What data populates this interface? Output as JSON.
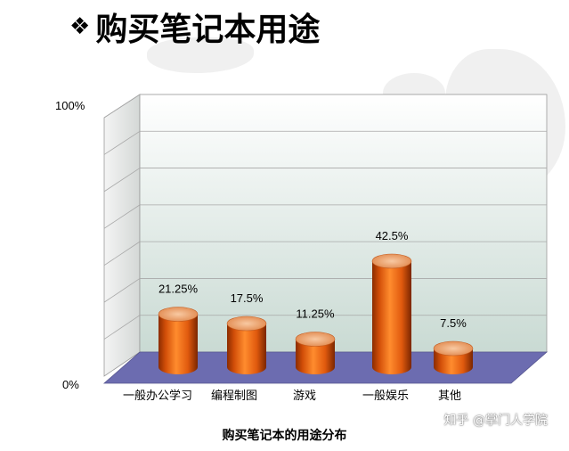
{
  "title": {
    "bullet": "❖",
    "text": "购买笔记本用途"
  },
  "chart_data": {
    "type": "bar",
    "categories": [
      "一般办公学习",
      "编程制图",
      "游戏",
      "一般娱乐",
      "其他"
    ],
    "values": [
      21.25,
      17.5,
      11.25,
      42.5,
      7.5
    ],
    "value_labels": [
      "21.25%",
      "17.5%",
      "11.25%",
      "42.5%",
      "7.5%"
    ],
    "ylim": [
      0,
      100
    ],
    "y_tick_labels": [
      "0%",
      "100%"
    ],
    "grid": true,
    "style": "3d-cylinder",
    "colors": {
      "bar": "#e05a10",
      "bar_top": "#f0a070",
      "floor": "#6666aa",
      "grid": "#a8a8a8"
    }
  },
  "caption": "购买笔记本的用途分布",
  "watermark": "知乎 @掌门人学院"
}
